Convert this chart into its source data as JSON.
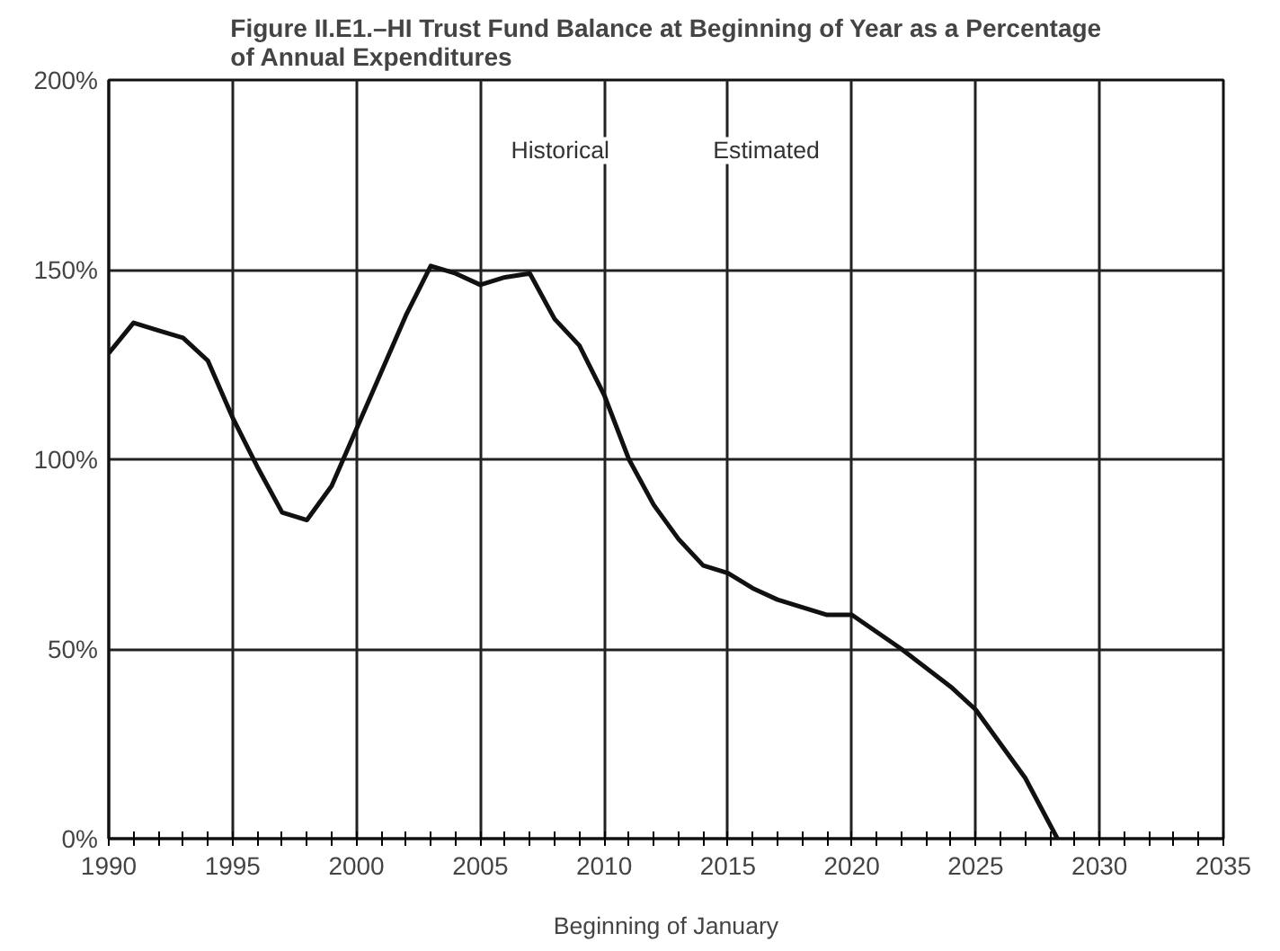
{
  "chart_data": {
    "type": "line",
    "title": "Figure II.E1.–HI Trust Fund Balance at Beginning of Year as a Percentage\nof Annual Expenditures",
    "xlabel": "Beginning of January",
    "x": [
      1990,
      1991,
      1992,
      1993,
      1994,
      1995,
      1996,
      1997,
      1998,
      1999,
      2000,
      2001,
      2002,
      2003,
      2004,
      2005,
      2006,
      2007,
      2008,
      2009,
      2010,
      2011,
      2012,
      2013,
      2014,
      2015,
      2016,
      2017,
      2018,
      2019,
      2020,
      2022,
      2024,
      2025,
      2027,
      2028.3
    ],
    "series": [
      {
        "color": "#111111",
        "values": [
          128,
          136,
          134,
          132,
          126,
          111,
          98,
          86,
          84,
          93,
          108,
          123,
          138,
          151,
          149,
          146,
          148,
          149,
          137,
          130,
          117,
          100,
          88,
          79,
          72,
          70,
          66,
          63,
          61,
          59,
          59,
          50,
          40,
          34,
          16,
          0
        ]
      }
    ],
    "xlim": [
      1990,
      2035
    ],
    "xticks": [
      1990,
      1995,
      2000,
      2005,
      2010,
      2015,
      2020,
      2025,
      2030,
      2035
    ],
    "ylim": [
      0,
      200
    ],
    "yticks": [
      {
        "value": 0,
        "label": "0%"
      },
      {
        "value": 50,
        "label": "50%"
      },
      {
        "value": 100,
        "label": "100%"
      },
      {
        "value": 150,
        "label": "150%"
      },
      {
        "value": 200,
        "label": "200%"
      }
    ],
    "grid": true,
    "line_style": "solid",
    "marker": "none",
    "annotations": [
      "Historical",
      "Estimated"
    ]
  }
}
